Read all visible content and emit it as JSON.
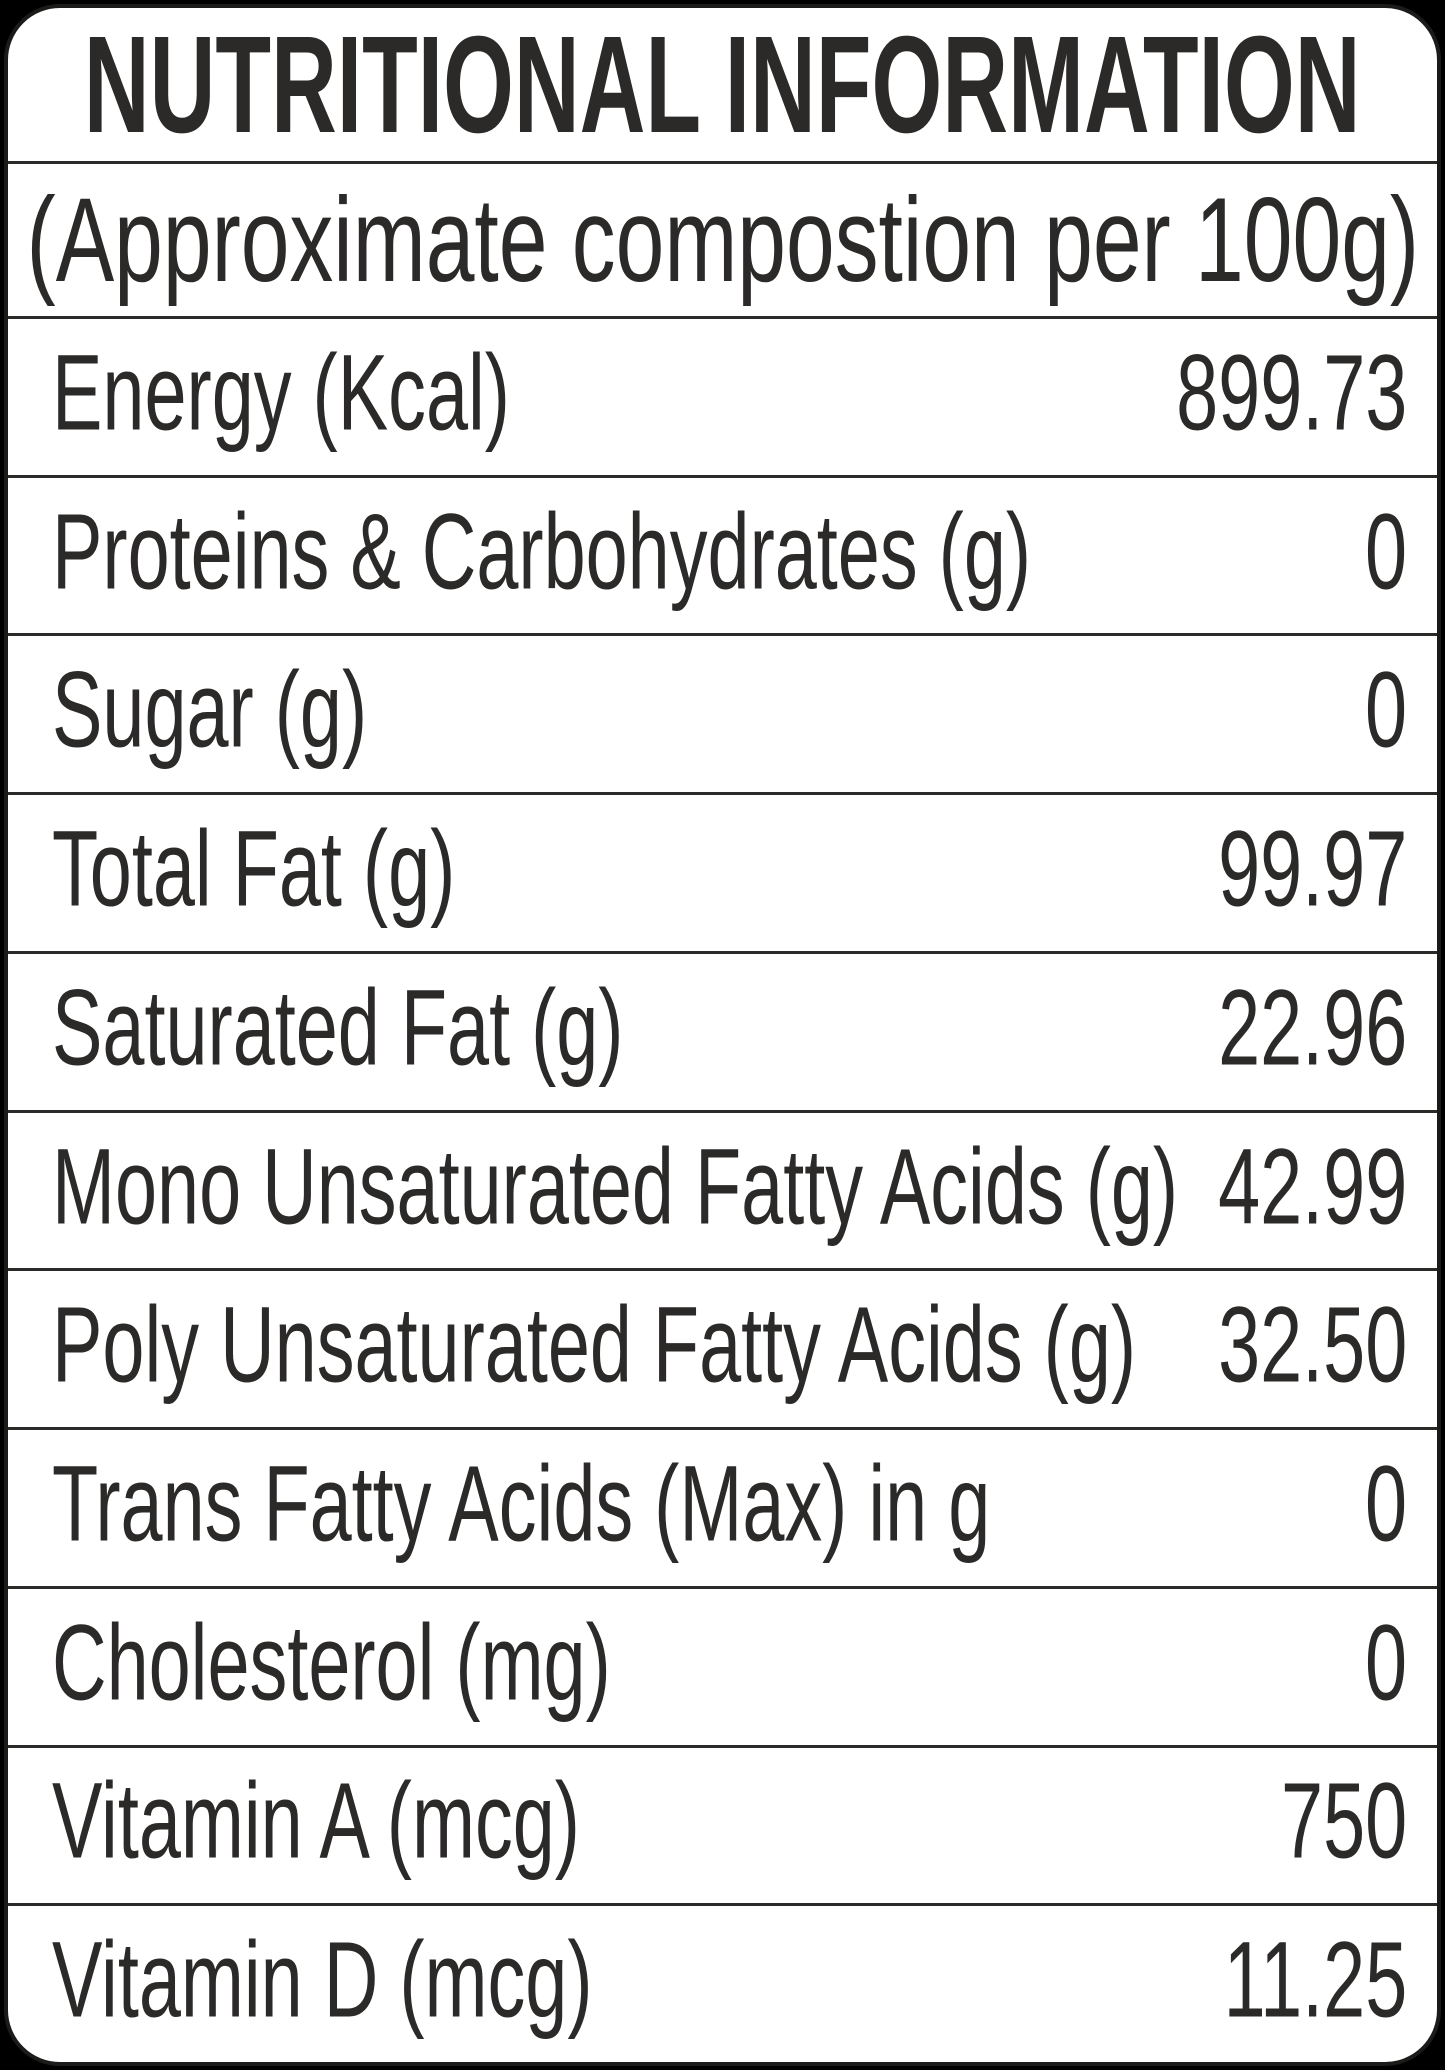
{
  "label": {
    "title": "NUTRITIONAL INFORMATION",
    "subtitle": "(Approximate compostion per 100g)",
    "rows": [
      {
        "name": "Energy (Kcal)",
        "value": "899.73"
      },
      {
        "name": "Proteins & Carbohydrates (g)",
        "value": "0"
      },
      {
        "name": "Sugar (g)",
        "value": "0"
      },
      {
        "name": "Total Fat (g)",
        "value": "99.97"
      },
      {
        "name": "Saturated Fat (g)",
        "value": "22.96"
      },
      {
        "name": "Mono Unsaturated Fatty Acids (g)",
        "value": "42.99"
      },
      {
        "name": "Poly Unsaturated Fatty Acids (g)",
        "value": "32.50"
      },
      {
        "name": "Trans Fatty Acids (Max) in g",
        "value": "0"
      },
      {
        "name": "Cholesterol (mg)",
        "value": "0"
      },
      {
        "name": "Vitamin A (mcg)",
        "value": "750"
      },
      {
        "name": "Vitamin D (mcg)",
        "value": "11.25"
      }
    ],
    "colors": {
      "text": "#2b2a29",
      "card_background": "#ffffff",
      "page_background": "#000000"
    }
  }
}
